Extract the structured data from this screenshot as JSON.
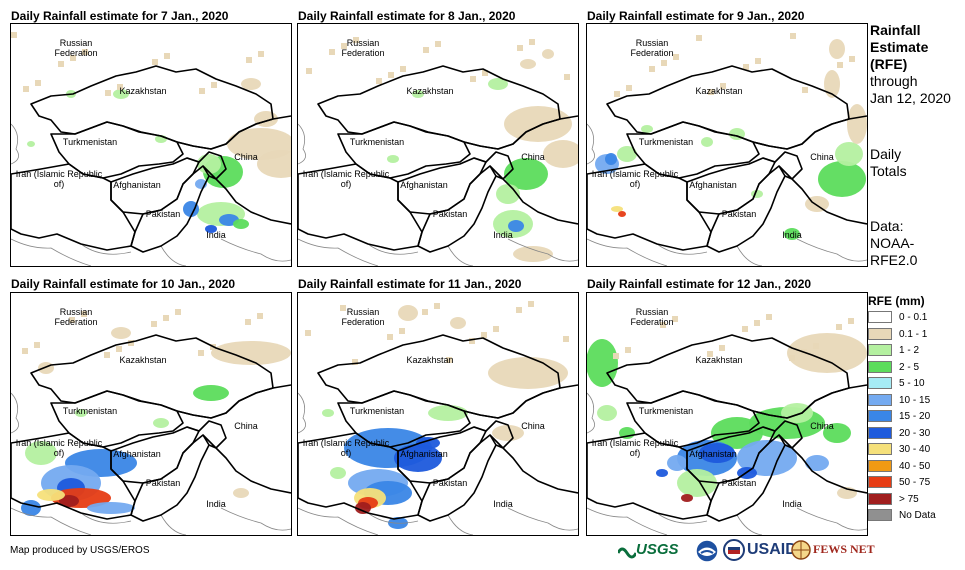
{
  "panels": [
    {
      "title": "Daily Rainfall estimate for 7 Jan., 2020",
      "scenario": 0
    },
    {
      "title": "Daily Rainfall estimate for 8 Jan., 2020",
      "scenario": 1
    },
    {
      "title": "Daily Rainfall estimate for 9 Jan., 2020",
      "scenario": 2
    },
    {
      "title": "Daily Rainfall estimate for 10 Jan., 2020",
      "scenario": 3
    },
    {
      "title": "Daily Rainfall estimate for 11 Jan., 2020",
      "scenario": 4
    },
    {
      "title": "Daily Rainfall estimate for 12 Jan., 2020",
      "scenario": 5
    }
  ],
  "countries": {
    "russia": "Russian Federation",
    "kazakhstan": "Kazakhstan",
    "turkmenistan": "Turkmenistan",
    "iran": "Iran (Islamic Republic of)",
    "afghanistan": "Afghanistan",
    "pakistan": "Pakistan",
    "china": "China",
    "india": "India"
  },
  "side": {
    "title_line1": "Rainfall",
    "title_line2": "Estimate",
    "title_line3": "(RFE)",
    "through": "through",
    "date": "Jan 12, 2020",
    "daily": "Daily",
    "totals": "Totals",
    "data_label": "Data:",
    "data_src1": "NOAA-",
    "data_src2": "RFE2.0"
  },
  "legend": {
    "title": "RFE (mm)",
    "items": [
      {
        "label": "0 - 0.1",
        "color": "#ffffff"
      },
      {
        "label": "0.1 - 1",
        "color": "#e8d8b8"
      },
      {
        "label": "1 - 2",
        "color": "#b4f0a0"
      },
      {
        "label": "2 - 5",
        "color": "#5cdc5c"
      },
      {
        "label": "5 - 10",
        "color": "#a6ecf5"
      },
      {
        "label": "10 - 15",
        "color": "#74aaf0"
      },
      {
        "label": "15 - 20",
        "color": "#3a86e6"
      },
      {
        "label": "20 - 30",
        "color": "#1e5adc"
      },
      {
        "label": "30 - 40",
        "color": "#f5e07a"
      },
      {
        "label": "40 - 50",
        "color": "#f09a14"
      },
      {
        "label": "50 - 75",
        "color": "#e63c14"
      },
      {
        "label": "> 75",
        "color": "#a01e1e"
      },
      {
        "label": "No Data",
        "color": "#909090"
      }
    ]
  },
  "footer": "Map produced by USGS/EROS",
  "logos": [
    "USGS",
    "NOAA",
    "USAID",
    "FEWS NET"
  ]
}
